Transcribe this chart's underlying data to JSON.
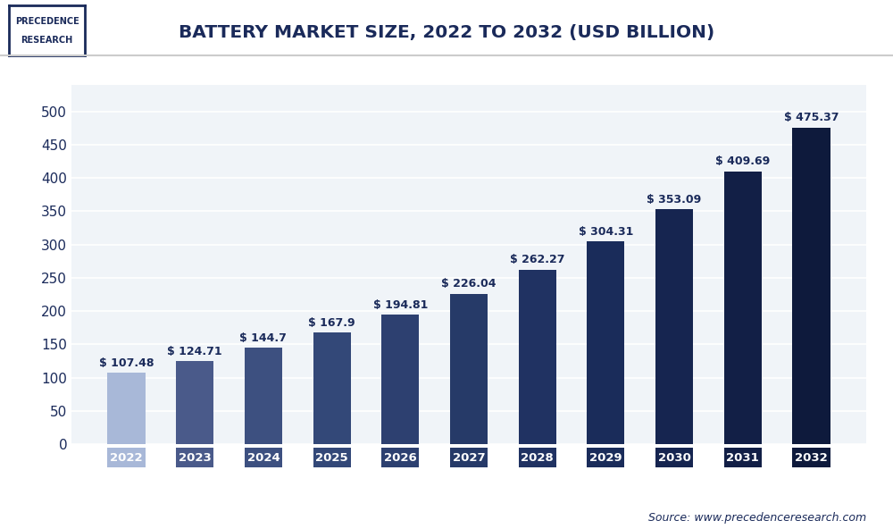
{
  "title": "BATTERY MARKET SIZE, 2022 TO 2032 (USD BILLION)",
  "years": [
    "2022",
    "2023",
    "2024",
    "2025",
    "2026",
    "2027",
    "2028",
    "2029",
    "2030",
    "2031",
    "2032"
  ],
  "values": [
    107.48,
    124.71,
    144.7,
    167.9,
    194.81,
    226.04,
    262.27,
    304.31,
    353.09,
    409.69,
    475.37
  ],
  "labels": [
    "$ 107.48",
    "$ 124.71",
    "$ 144.7",
    "$ 167.9",
    "$ 194.81",
    "$ 226.04",
    "$ 262.27",
    "$ 304.31",
    "$ 353.09",
    "$ 409.69",
    "$ 475.37"
  ],
  "bar_colors": [
    "#a8b8d8",
    "#4a5a8a",
    "#3d5080",
    "#334878",
    "#2d4070",
    "#263a68",
    "#203262",
    "#1a2c5a",
    "#162550",
    "#121f46",
    "#0e1a3c"
  ],
  "yticks": [
    0,
    50,
    100,
    150,
    200,
    250,
    300,
    350,
    400,
    450,
    500
  ],
  "ylim": [
    0,
    540
  ],
  "background_color": "#ffffff",
  "plot_bg_color": "#f0f4f8",
  "title_color": "#1a2a5a",
  "axis_color": "#1a2a5a",
  "label_fontsize": 9.0,
  "title_fontsize": 14.5,
  "source_text": "Source: www.precedenceresearch.com",
  "logo_text_line1": "PRECEDENCE",
  "logo_text_line2": "RESEARCH"
}
